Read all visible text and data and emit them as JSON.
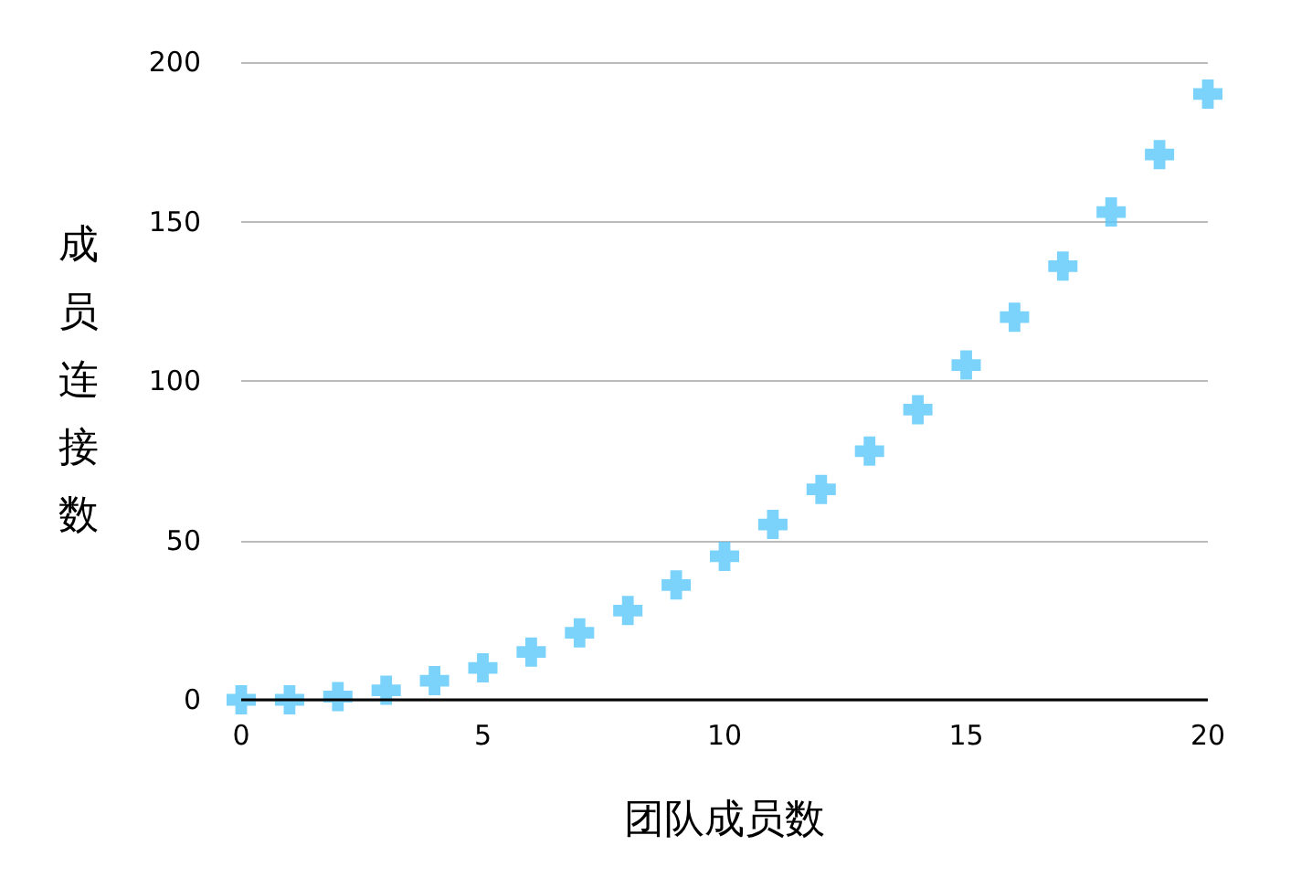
{
  "chart_data": {
    "type": "scatter",
    "xlabel": "团队成员数",
    "ylabel": "成员连接数",
    "x": [
      0,
      1,
      2,
      3,
      4,
      5,
      6,
      7,
      8,
      9,
      10,
      11,
      12,
      13,
      14,
      15,
      16,
      17,
      18,
      19,
      20
    ],
    "series": [
      {
        "color": "#5ac8fa",
        "values": [
          0,
          0,
          1,
          3,
          6,
          10,
          15,
          21,
          28,
          36,
          45,
          55,
          66,
          78,
          91,
          105,
          120,
          136,
          153,
          171,
          190
        ]
      }
    ],
    "xlim": [
      0,
      20
    ],
    "xticks": [
      0,
      5,
      10,
      15,
      20
    ],
    "ylim": [
      0,
      200
    ],
    "yticks": [
      0,
      50,
      100,
      150,
      200
    ],
    "grid": "y",
    "marker": "cross"
  }
}
